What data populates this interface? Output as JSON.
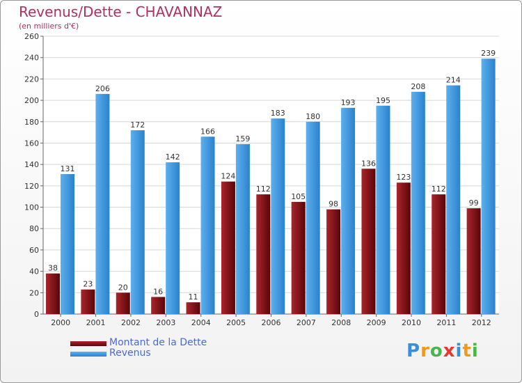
{
  "chart_data": {
    "type": "bar",
    "title": "Revenus/Dette - CHAVANNAZ",
    "subtitle": "(en milliers d'€)",
    "categories": [
      "2000",
      "2001",
      "2002",
      "2003",
      "2004",
      "2005",
      "2006",
      "2007",
      "2008",
      "2009",
      "2010",
      "2011",
      "2012"
    ],
    "series": [
      {
        "name": "Montant de la Dette",
        "color": "#7a0f14",
        "values": [
          38,
          23,
          20,
          16,
          11,
          124,
          112,
          105,
          98,
          136,
          123,
          112,
          99
        ]
      },
      {
        "name": "Revenus",
        "color": "#3d9be3",
        "values": [
          131,
          206,
          172,
          142,
          166,
          159,
          183,
          180,
          193,
          195,
          208,
          214,
          239
        ]
      }
    ],
    "ylim": [
      0,
      260
    ],
    "yticks": [
      "0",
      "20",
      "40",
      "60",
      "80",
      "100",
      "120",
      "140",
      "160",
      "180",
      "200",
      "220",
      "240",
      "260"
    ],
    "grid": true,
    "legend_position": "bottom-left"
  },
  "logo": {
    "letters": [
      {
        "char": "P",
        "color": "#3b8fd8"
      },
      {
        "char": "r",
        "color": "#f09a1c"
      },
      {
        "char": "o",
        "color": "#49b64a"
      },
      {
        "char": "x",
        "color": "#e23a2e"
      },
      {
        "char": "i",
        "color": "#3b8fd8"
      },
      {
        "char": "t",
        "color": "#f09a1c"
      },
      {
        "char": "i",
        "color": "#49b64a"
      }
    ]
  }
}
